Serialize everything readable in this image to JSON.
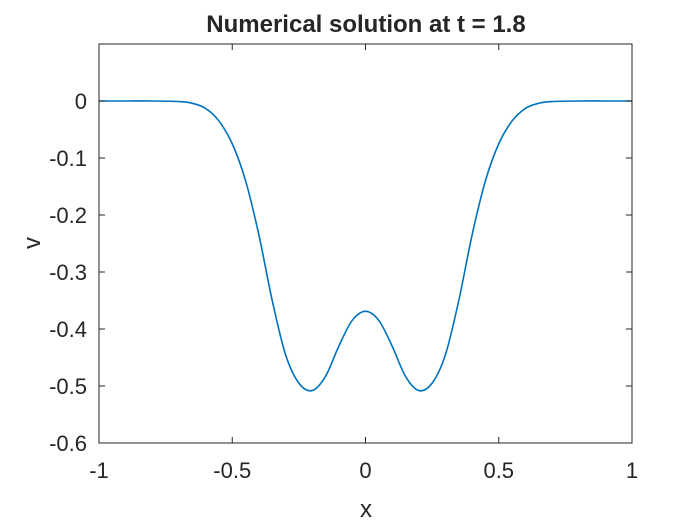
{
  "chart_data": {
    "type": "line",
    "title": "Numerical solution at t = 1.8",
    "xlabel": "x",
    "ylabel": "v",
    "xlim": [
      -1,
      1
    ],
    "ylim": [
      -0.6,
      0.1
    ],
    "x_ticks": [
      -1,
      -0.5,
      0,
      0.5,
      1
    ],
    "x_tick_labels": [
      "-1",
      "-0.5",
      "0",
      "0.5",
      "1"
    ],
    "y_ticks": [
      0,
      -0.1,
      -0.2,
      -0.3,
      -0.4,
      -0.5,
      -0.6
    ],
    "y_tick_labels": [
      "0",
      "-0.1",
      "-0.2",
      "-0.3",
      "-0.4",
      "-0.5",
      "-0.6"
    ],
    "grid": false,
    "line_color": "#0072BD",
    "series": [
      {
        "x": [
          -1.0,
          -0.9,
          -0.8,
          -0.7,
          -0.65,
          -0.6,
          -0.55,
          -0.5,
          -0.45,
          -0.4,
          -0.35,
          -0.3,
          -0.25,
          -0.2,
          -0.15,
          -0.1,
          -0.05,
          0.0,
          0.05,
          0.1,
          0.15,
          0.2,
          0.25,
          0.3,
          0.35,
          0.4,
          0.45,
          0.5,
          0.55,
          0.6,
          0.65,
          0.7,
          0.8,
          0.9,
          1.0
        ],
        "y": [
          0.0,
          0.0,
          0.0,
          -0.001,
          -0.004,
          -0.013,
          -0.035,
          -0.075,
          -0.14,
          -0.235,
          -0.35,
          -0.445,
          -0.495,
          -0.508,
          -0.483,
          -0.43,
          -0.385,
          -0.369,
          -0.385,
          -0.43,
          -0.483,
          -0.508,
          -0.495,
          -0.445,
          -0.35,
          -0.235,
          -0.14,
          -0.075,
          -0.035,
          -0.013,
          -0.004,
          -0.001,
          0.0,
          0.0,
          0.0
        ]
      }
    ]
  }
}
